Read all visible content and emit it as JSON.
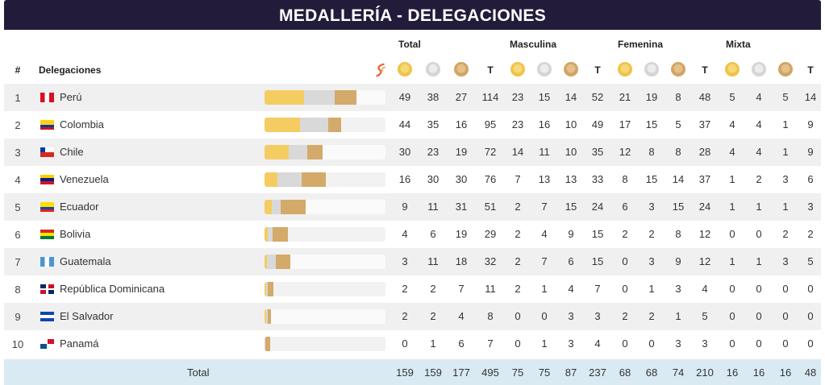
{
  "title": "MEDALLERÍA - DELEGACIONES",
  "groups": [
    "Total",
    "Masculina",
    "Femenina",
    "Mixta"
  ],
  "headers": {
    "rank": "#",
    "delegation": "Delegaciones",
    "t": "T"
  },
  "icons": {
    "medal_gold": "gold-medal-icon",
    "medal_silver": "silver-medal-icon",
    "medal_bronze": "bronze-medal-icon",
    "logo": "games-logo-icon"
  },
  "colors": {
    "title_bg": "#221c3a",
    "gold": "#f4cc62",
    "silver": "#d9d9d9",
    "bronze": "#d3aa6a",
    "total_bg": "#d9eaf3",
    "row_shade": "#f0f0f0"
  },
  "rows": [
    {
      "rank": "1",
      "name": "Perú",
      "flag": "peru",
      "stats": [
        "49",
        "38",
        "27",
        "114",
        "23",
        "15",
        "14",
        "52",
        "21",
        "19",
        "8",
        "48",
        "5",
        "4",
        "5",
        "14"
      ]
    },
    {
      "rank": "2",
      "name": "Colombia",
      "flag": "colombia",
      "stats": [
        "44",
        "35",
        "16",
        "95",
        "23",
        "16",
        "10",
        "49",
        "17",
        "15",
        "5",
        "37",
        "4",
        "4",
        "1",
        "9"
      ]
    },
    {
      "rank": "3",
      "name": "Chile",
      "flag": "chile",
      "stats": [
        "30",
        "23",
        "19",
        "72",
        "14",
        "11",
        "10",
        "35",
        "12",
        "8",
        "8",
        "28",
        "4",
        "4",
        "1",
        "9"
      ]
    },
    {
      "rank": "4",
      "name": "Venezuela",
      "flag": "venezuela",
      "stats": [
        "16",
        "30",
        "30",
        "76",
        "7",
        "13",
        "13",
        "33",
        "8",
        "15",
        "14",
        "37",
        "1",
        "2",
        "3",
        "6"
      ]
    },
    {
      "rank": "5",
      "name": "Ecuador",
      "flag": "ecuador",
      "stats": [
        "9",
        "11",
        "31",
        "51",
        "2",
        "7",
        "15",
        "24",
        "6",
        "3",
        "15",
        "24",
        "1",
        "1",
        "1",
        "3"
      ]
    },
    {
      "rank": "6",
      "name": "Bolivia",
      "flag": "bolivia",
      "stats": [
        "4",
        "6",
        "19",
        "29",
        "2",
        "4",
        "9",
        "15",
        "2",
        "2",
        "8",
        "12",
        "0",
        "0",
        "2",
        "2"
      ]
    },
    {
      "rank": "7",
      "name": "Guatemala",
      "flag": "guatemala",
      "stats": [
        "3",
        "11",
        "18",
        "32",
        "2",
        "7",
        "6",
        "15",
        "0",
        "3",
        "9",
        "12",
        "1",
        "1",
        "3",
        "5"
      ]
    },
    {
      "rank": "8",
      "name": "República Dominicana",
      "flag": "dominicana",
      "stats": [
        "2",
        "2",
        "7",
        "11",
        "2",
        "1",
        "4",
        "7",
        "0",
        "1",
        "3",
        "4",
        "0",
        "0",
        "0",
        "0"
      ]
    },
    {
      "rank": "9",
      "name": "El Salvador",
      "flag": "salvador",
      "stats": [
        "2",
        "2",
        "4",
        "8",
        "0",
        "0",
        "3",
        "3",
        "2",
        "2",
        "1",
        "5",
        "0",
        "0",
        "0",
        "0"
      ]
    },
    {
      "rank": "10",
      "name": "Panamá",
      "flag": "panama",
      "stats": [
        "0",
        "1",
        "6",
        "7",
        "0",
        "1",
        "3",
        "4",
        "0",
        "0",
        "3",
        "3",
        "0",
        "0",
        "0",
        "0"
      ]
    }
  ],
  "total": {
    "label": "Total",
    "stats": [
      "159",
      "159",
      "177",
      "495",
      "75",
      "75",
      "87",
      "237",
      "68",
      "68",
      "74",
      "210",
      "16",
      "16",
      "16",
      "48"
    ]
  }
}
